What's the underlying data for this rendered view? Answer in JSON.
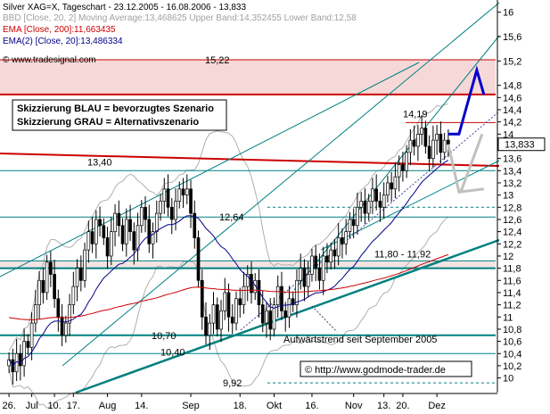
{
  "header": {
    "line1": "Silver XAG=X, Tageschart - 23.12.2005 - 16.08.2006 - 13,833",
    "line2": "BBD [Close, 20, 2] Moving Average:13,468625 Upper Band:14,352455 Lower Band:12,58",
    "line3": "EMA [Close, 200]:11,663435",
    "line4": "EMA(2) [Close, 20]:13,486334",
    "source": "© www.tradesignal.com",
    "copyright": "© http://www.godmode-trader.de"
  },
  "colors": {
    "candle_up": "#ffffff",
    "candle_down": "#000000",
    "ema200": "#cc0000",
    "ema20": "#00008b",
    "bollinger": "#b0b0b0",
    "level_line": "#008080",
    "resistance_zone": "#f7d8d8",
    "scenario_blue": "#0000cc",
    "scenario_gray": "#c0c0c0",
    "trend": "#008080"
  },
  "legend_boxes": {
    "blue": "Skizzierung BLAU = bevorzugtes Szenario",
    "gray": "Skizzierung GRAU = Alternativszenario"
  },
  "chart_data": {
    "type": "candlestick",
    "title": "Silver XAG=X, Tageschart - 23.12.2005 - 16.08.2006 - 13,833",
    "last_value": "13,833",
    "y_ticks": [
      "16",
      "15,6",
      "15,2",
      "14,8",
      "14,6",
      "14,4",
      "14,2",
      "14",
      "13,8",
      "13,6",
      "13,4",
      "13,2",
      "13",
      "12,8",
      "12,6",
      "12,4",
      "12,2",
      "12",
      "11,8",
      "11,6",
      "11,4",
      "11,2",
      "11",
      "10,8",
      "10,6",
      "10,4",
      "10,2",
      "10"
    ],
    "y_values": [
      16,
      15.6,
      15.2,
      14.8,
      14.6,
      14.4,
      14.2,
      14,
      13.8,
      13.6,
      13.4,
      13.2,
      13,
      12.8,
      12.6,
      12.4,
      12.2,
      12,
      11.8,
      11.6,
      11.4,
      11.2,
      11,
      10.8,
      10.6,
      10.4,
      10.2,
      10
    ],
    "ylim": [
      9.76,
      16.2
    ],
    "x_ticks": [
      "26.",
      "Jul",
      "10.",
      "17.",
      "Aug",
      "14.",
      "Sep",
      "18.",
      "Okt",
      "16.",
      "Nov",
      "13.",
      "20.",
      "Dez"
    ],
    "x_tick_bars": [
      0,
      6,
      12,
      17,
      26,
      35,
      48,
      61,
      70,
      80,
      91,
      99,
      104,
      113
    ],
    "bars": 117,
    "levels": [
      {
        "value": 15.22,
        "label": "15,22"
      },
      {
        "value": 14.65,
        "label": "14,65"
      },
      {
        "value": 13.4,
        "label": "13,40"
      },
      {
        "value": 12.64,
        "label": "12,64"
      },
      {
        "value": 11.8,
        "label": "11,80 - 11,92"
      },
      {
        "value": 10.7,
        "label": "10,70"
      },
      {
        "value": 10.4,
        "label": "10,40"
      },
      {
        "value": 9.92,
        "label": "9,92"
      },
      {
        "value": 14.19,
        "label": "14,19"
      }
    ],
    "annotation": "Aufwärtstrend seit September 2005",
    "resistance_zone": [
      14.65,
      15.22
    ],
    "support_zone": [
      11.8,
      11.92
    ],
    "closes": [
      10.3,
      10.1,
      10.4,
      10.2,
      10.6,
      10.5,
      10.9,
      11.2,
      11.6,
      11.4,
      11.9,
      11.7,
      11.3,
      11.0,
      10.7,
      10.9,
      11.2,
      11.5,
      11.8,
      11.6,
      12.1,
      12.4,
      12.2,
      12.6,
      12.5,
      12.3,
      12.0,
      12.4,
      12.7,
      12.5,
      12.2,
      12.6,
      12.4,
      12.1,
      12.5,
      12.8,
      12.6,
      12.2,
      12.4,
      12.7,
      12.9,
      13.1,
      12.8,
      12.6,
      12.9,
      13.1,
      13.0,
      13.1,
      12.7,
      12.3,
      11.6,
      11.0,
      10.7,
      10.9,
      11.2,
      10.8,
      11.1,
      11.4,
      11.0,
      10.9,
      11.3,
      11.2,
      11.5,
      11.7,
      11.4,
      11.6,
      11.2,
      10.9,
      11.1,
      10.8,
      11.2,
      11.5,
      11.1,
      11.0,
      11.3,
      11.2,
      11.6,
      11.8,
      11.5,
      11.7,
      12.0,
      11.8,
      11.6,
      12.0,
      11.9,
      12.1,
      12.0,
      12.3,
      12.2,
      12.4,
      12.6,
      12.5,
      12.8,
      12.9,
      12.7,
      12.9,
      13.1,
      12.9,
      12.8,
      13.0,
      13.2,
      13.1,
      13.3,
      13.5,
      13.4,
      13.7,
      13.9,
      13.8,
      14.0,
      14.1,
      13.8,
      13.6,
      13.9,
      14.0,
      13.7,
      13.9,
      13.833
    ],
    "projection_blue": [
      [
        14.0,
        14.0
      ],
      [
        15.05,
        14.65
      ]
    ],
    "projection_gray": [
      [
        13.2,
        13.0
      ],
      [
        13.1
      ]
    ]
  }
}
